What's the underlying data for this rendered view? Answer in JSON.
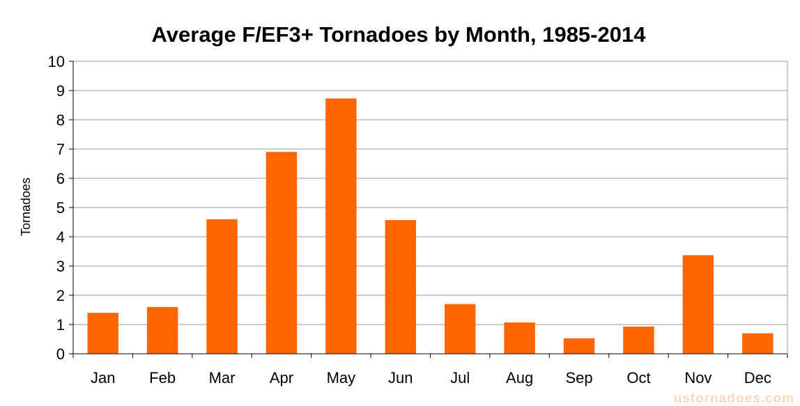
{
  "chart_data": {
    "type": "bar",
    "title": "Average F/EF3+ Tornadoes by Month, 1985-2014",
    "xlabel": "",
    "ylabel": "Tornadoes",
    "categories": [
      "Jan",
      "Feb",
      "Mar",
      "Apr",
      "May",
      "Jun",
      "Jul",
      "Aug",
      "Sep",
      "Oct",
      "Nov",
      "Dec"
    ],
    "values": [
      1.4,
      1.6,
      4.6,
      6.9,
      8.73,
      4.57,
      1.7,
      1.07,
      0.53,
      0.93,
      3.37,
      0.7
    ],
    "ylim": [
      0,
      10
    ],
    "yticks": [
      "0",
      "1",
      "2",
      "3",
      "4",
      "5",
      "6",
      "7",
      "8",
      "9",
      "10"
    ],
    "grid": true,
    "legend": "none",
    "bar_color": "#ff6600",
    "grid_color": "#999999"
  },
  "watermark": "ustornadoes.com"
}
